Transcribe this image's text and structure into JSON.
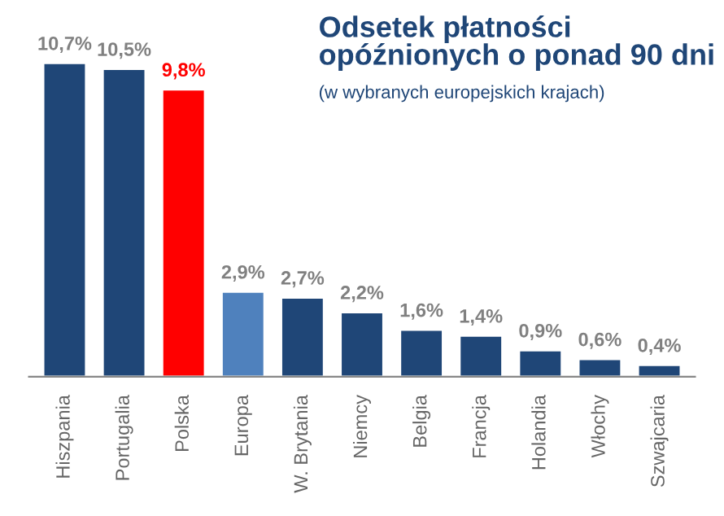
{
  "chart_data": {
    "type": "bar",
    "title": "Odsetek płatności\nopóźnionych o ponad 90 dni",
    "subtitle": "(w wybranych europejskich krajach)",
    "categories": [
      "Hiszpania",
      "Portugalia",
      "Polska",
      "Europa",
      "W. Brytania",
      "Niemcy",
      "Belgia",
      "Francja",
      "Holandia",
      "Włochy",
      "Szwajcaria"
    ],
    "values": [
      10.7,
      10.5,
      9.8,
      2.9,
      2.7,
      2.2,
      1.6,
      1.4,
      0.9,
      0.6,
      0.4
    ],
    "value_labels": [
      "10,7%",
      "10,5%",
      "9,8%",
      "2,9%",
      "2,7%",
      "2,2%",
      "1,6%",
      "1,4%",
      "0,9%",
      "0,6%",
      "0,4%"
    ],
    "colors": [
      "#1f4677",
      "#1f4677",
      "#ff0000",
      "#4f81bd",
      "#1f4677",
      "#1f4677",
      "#1f4677",
      "#1f4677",
      "#1f4677",
      "#1f4677",
      "#1f4677"
    ],
    "grid": false,
    "legend": false
  }
}
